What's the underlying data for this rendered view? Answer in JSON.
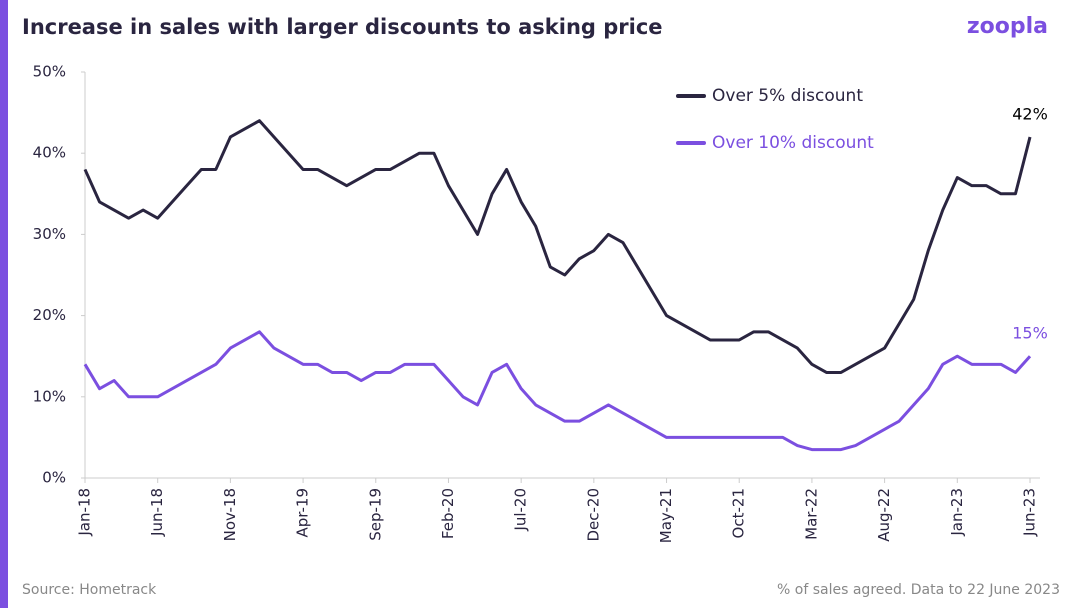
{
  "brand": "zoopla",
  "chart_data": {
    "type": "line",
    "title": "Increase in sales with larger discounts to asking price",
    "source": "Source: Hometrack",
    "note": "% of sales agreed. Data to 22 June 2023",
    "categories": [
      "Jan-18",
      null,
      null,
      null,
      null,
      "Jun-18",
      null,
      null,
      null,
      null,
      "Nov-18",
      null,
      null,
      null,
      null,
      "Apr-19",
      null,
      null,
      null,
      null,
      "Sep-19",
      null,
      null,
      null,
      null,
      "Feb-20",
      null,
      null,
      null,
      null,
      "Jul-20",
      null,
      null,
      null,
      null,
      "Dec-20",
      null,
      null,
      null,
      null,
      "May-21",
      null,
      null,
      null,
      null,
      "Oct-21",
      null,
      null,
      null,
      null,
      "Mar-22",
      null,
      null,
      null,
      null,
      "Aug-22",
      null,
      null,
      null,
      null,
      "Jan-23",
      null,
      null,
      null,
      null,
      "Jun-23"
    ],
    "series": [
      {
        "name": "Over 5% discount",
        "color": "#2a2540",
        "values": [
          38,
          34,
          33,
          32,
          33,
          32,
          34,
          36,
          38,
          38,
          42,
          43,
          44,
          42,
          40,
          38,
          38,
          37,
          36,
          37,
          38,
          38,
          39,
          40,
          40,
          36,
          33,
          30,
          35,
          38,
          34,
          31,
          26,
          25,
          27,
          28,
          30,
          29,
          26,
          23,
          20,
          19,
          18,
          17,
          17,
          17,
          18,
          18,
          17,
          16,
          14,
          13,
          13,
          14,
          15,
          16,
          19,
          22,
          28,
          33,
          37,
          36,
          36,
          35,
          35,
          42
        ],
        "value_labels": [
          null,
          null,
          null,
          null,
          null,
          null,
          null,
          null,
          null,
          null,
          null,
          null,
          null,
          null,
          null,
          null,
          null,
          null,
          null,
          null,
          null,
          null,
          null,
          null,
          null,
          null,
          null,
          null,
          null,
          null,
          null,
          null,
          null,
          null,
          null,
          null,
          null,
          null,
          null,
          null,
          null,
          null,
          null,
          null,
          null,
          null,
          null,
          null,
          null,
          null,
          null,
          null,
          null,
          null,
          null,
          null,
          null,
          null,
          null,
          null,
          null,
          null,
          null,
          null,
          null,
          "42%"
        ]
      },
      {
        "name": "Over 10% discount",
        "color": "#7b4fe0",
        "values": [
          14,
          11,
          12,
          10,
          10,
          10,
          11,
          12,
          13,
          14,
          16,
          17,
          18,
          16,
          15,
          14,
          14,
          13,
          13,
          12,
          13,
          13,
          14,
          14,
          14,
          12,
          10,
          9,
          13,
          14,
          11,
          9,
          8,
          7,
          7,
          8,
          9,
          8,
          7,
          6,
          5,
          5,
          5,
          5,
          5,
          5,
          5,
          5,
          5,
          4,
          3.5,
          3.5,
          3.5,
          4,
          5,
          6,
          7,
          9,
          11,
          14,
          15,
          14,
          14,
          14,
          13,
          15
        ],
        "value_labels": [
          null,
          null,
          null,
          null,
          null,
          null,
          null,
          null,
          null,
          null,
          null,
          null,
          null,
          null,
          null,
          null,
          null,
          null,
          null,
          null,
          null,
          null,
          null,
          null,
          null,
          null,
          null,
          null,
          null,
          null,
          null,
          null,
          null,
          null,
          null,
          null,
          null,
          null,
          null,
          null,
          null,
          null,
          null,
          null,
          null,
          null,
          null,
          null,
          null,
          null,
          null,
          null,
          null,
          null,
          null,
          null,
          null,
          null,
          null,
          null,
          null,
          null,
          null,
          null,
          null,
          "15%"
        ]
      }
    ],
    "ylim": [
      0,
      50
    ],
    "yticks": [
      {
        "value": 0,
        "label": "0%"
      },
      {
        "value": 10,
        "label": "10%"
      },
      {
        "value": 20,
        "label": "20%"
      },
      {
        "value": 30,
        "label": "30%"
      },
      {
        "value": 40,
        "label": "40%"
      },
      {
        "value": 50,
        "label": "50%"
      }
    ],
    "grid": false,
    "legend": "top-right"
  }
}
